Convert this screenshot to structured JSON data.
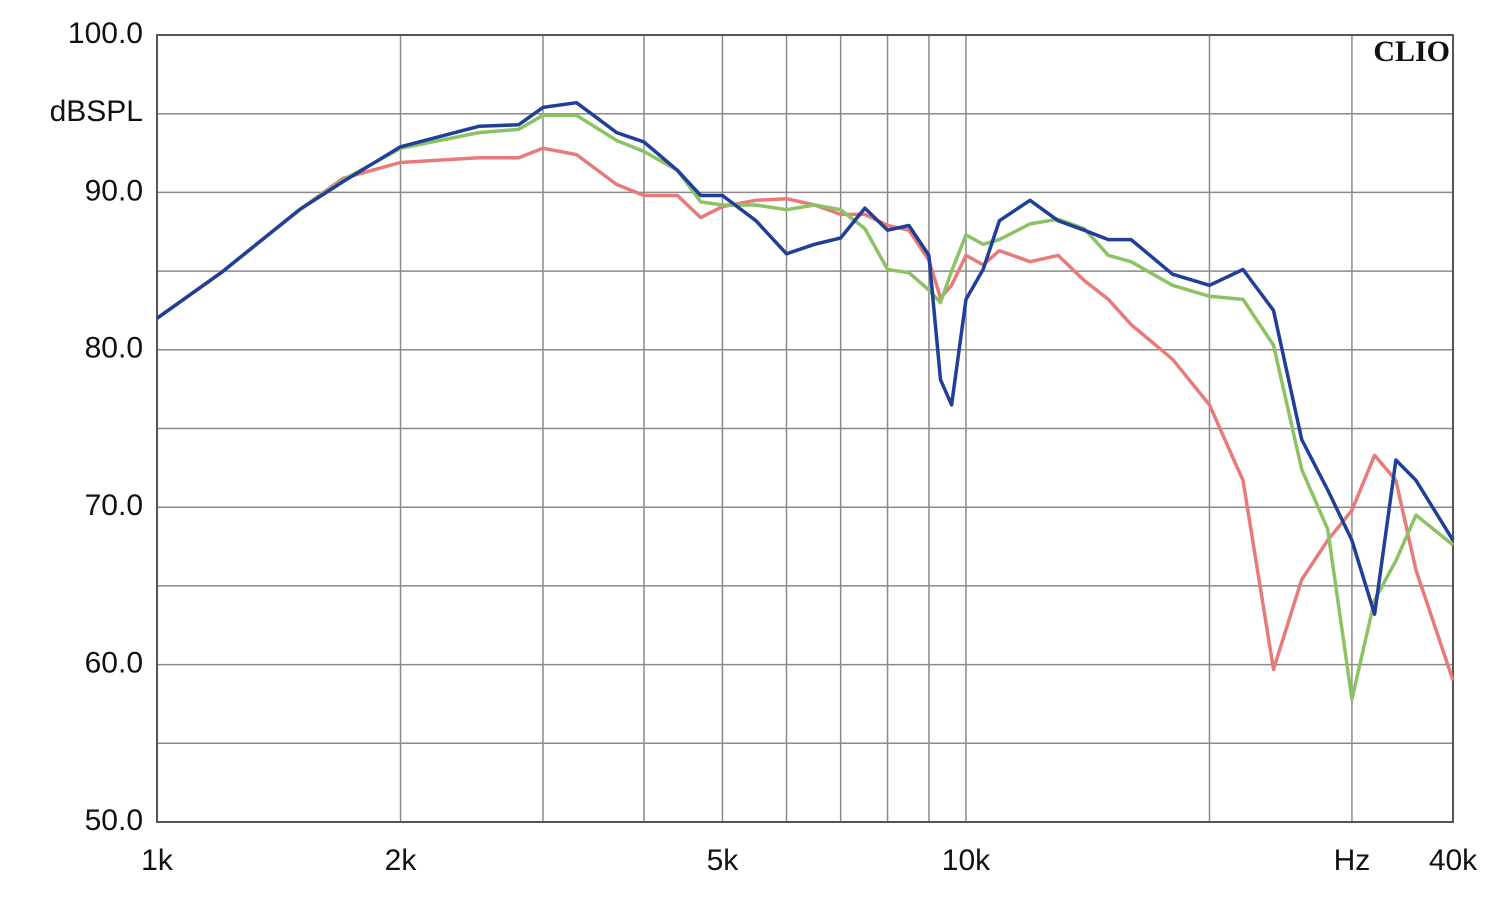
{
  "chart_data": {
    "type": "line",
    "annotation": "CLIO",
    "ylabel": "dBSPL",
    "xscale": "log",
    "xlim": [
      1000,
      40000
    ],
    "ylim": [
      50,
      100
    ],
    "xticks": [
      {
        "value": 1000,
        "label": "1k"
      },
      {
        "value": 2000,
        "label": "2k"
      },
      {
        "value": 5000,
        "label": "5k"
      },
      {
        "value": 10000,
        "label": "10k"
      },
      {
        "value": 30000,
        "label": "Hz"
      },
      {
        "value": 40000,
        "label": "40k"
      }
    ],
    "xminor": [
      3000,
      4000,
      6000,
      7000,
      8000,
      9000,
      20000
    ],
    "yticks": [
      {
        "value": 50,
        "label": "50.0"
      },
      {
        "value": 60,
        "label": "60.0"
      },
      {
        "value": 70,
        "label": "70.0"
      },
      {
        "value": 80,
        "label": "80.0"
      },
      {
        "value": 90,
        "label": "90.0"
      },
      {
        "value": 100,
        "label": "100.0"
      }
    ],
    "yminor": [
      55,
      65,
      75,
      85,
      95
    ],
    "grid": true,
    "x": [
      1000,
      1200,
      1500,
      1700,
      2000,
      2500,
      2800,
      3000,
      3300,
      3700,
      4000,
      4400,
      4700,
      5000,
      5500,
      6000,
      6500,
      7000,
      7500,
      8000,
      8500,
      9000,
      9300,
      9600,
      10000,
      10500,
      11000,
      12000,
      13000,
      14000,
      15000,
      16000,
      18000,
      20000,
      22000,
      24000,
      26000,
      28000,
      30000,
      32000,
      34000,
      36000,
      40000
    ],
    "series": [
      {
        "color": "#e87a7a",
        "values": [
          82.0,
          84.9,
          88.9,
          90.9,
          91.9,
          92.2,
          92.2,
          92.8,
          92.4,
          90.5,
          89.8,
          89.8,
          88.4,
          89.1,
          89.5,
          89.6,
          89.2,
          88.6,
          88.6,
          87.9,
          87.6,
          85.7,
          83.3,
          84.1,
          86.0,
          85.4,
          86.3,
          85.6,
          86.0,
          84.4,
          83.2,
          81.6,
          79.4,
          76.5,
          71.7,
          59.7,
          65.4,
          67.9,
          69.8,
          73.3,
          71.7,
          66.0,
          59.0
        ]
      },
      {
        "color": "#8cc264",
        "values": [
          82.0,
          84.9,
          88.9,
          90.8,
          92.8,
          93.8,
          94.0,
          94.9,
          94.9,
          93.3,
          92.6,
          91.4,
          89.4,
          89.2,
          89.2,
          88.9,
          89.2,
          88.9,
          87.7,
          85.1,
          84.9,
          83.8,
          83.0,
          85.0,
          87.3,
          86.7,
          87.0,
          88.0,
          88.3,
          87.7,
          86.0,
          85.6,
          84.1,
          83.4,
          83.2,
          80.3,
          72.4,
          68.6,
          57.8,
          64.1,
          66.6,
          69.5,
          67.6
        ]
      },
      {
        "color": "#1f3f99",
        "values": [
          82.0,
          84.9,
          88.9,
          90.7,
          92.9,
          94.2,
          94.3,
          95.4,
          95.7,
          93.8,
          93.2,
          91.4,
          89.8,
          89.8,
          88.2,
          86.1,
          86.7,
          87.1,
          89.0,
          87.6,
          87.9,
          86.0,
          78.1,
          76.5,
          83.2,
          85.1,
          88.2,
          89.5,
          88.2,
          87.6,
          87.0,
          87.0,
          84.8,
          84.1,
          85.1,
          82.5,
          74.3,
          71.1,
          67.9,
          63.2,
          73.0,
          71.7,
          67.9
        ]
      }
    ]
  }
}
